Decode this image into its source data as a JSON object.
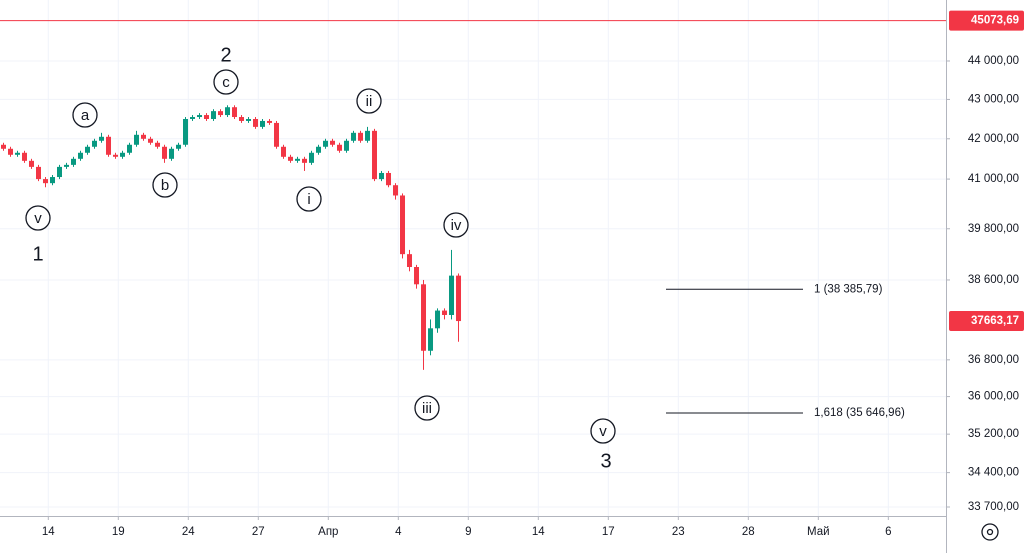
{
  "chart_data": {
    "type": "candlestick",
    "up_color": "#089981",
    "down_color": "#f23645",
    "open": [
      41850,
      41750,
      41600,
      41650,
      41450,
      41300,
      41000,
      40900,
      41050,
      41300,
      41350,
      41500,
      41650,
      41800,
      41950,
      42050,
      41600,
      41550,
      41650,
      41850,
      42100,
      42000,
      41900,
      41800,
      41500,
      41750,
      41850,
      42500,
      42550,
      42600,
      42500,
      42700,
      42600,
      42800,
      42550,
      42450,
      42500,
      42300,
      42450,
      42400,
      41800,
      41550,
      41450,
      41500,
      41400,
      41650,
      41800,
      41950,
      41850,
      41700,
      41950,
      42150,
      41950,
      42200,
      41000,
      41150,
      40850,
      40600,
      39200,
      38900,
      38500,
      37000,
      37500,
      37900,
      37800,
      38700
    ],
    "high": [
      41900,
      41800,
      41700,
      41700,
      41500,
      41350,
      41050,
      41100,
      41350,
      41400,
      41550,
      41700,
      41850,
      42000,
      42150,
      42100,
      41650,
      41700,
      41900,
      42200,
      42150,
      42050,
      41950,
      41850,
      41800,
      41900,
      42550,
      42600,
      42650,
      42650,
      42750,
      42750,
      42850,
      42850,
      42600,
      42550,
      42550,
      42500,
      42500,
      42450,
      41850,
      41600,
      41550,
      41550,
      41700,
      41850,
      42000,
      42000,
      41900,
      42000,
      42200,
      42200,
      42300,
      42250,
      41200,
      41200,
      40900,
      40650,
      39300,
      38950,
      38600,
      37700,
      37950,
      37950,
      39300,
      38750
    ],
    "low": [
      41700,
      41550,
      41550,
      41400,
      41250,
      40950,
      40800,
      40850,
      41000,
      41250,
      41300,
      41450,
      41600,
      41750,
      41900,
      41550,
      41500,
      41500,
      41600,
      41800,
      41950,
      41850,
      41750,
      41400,
      41450,
      41700,
      41800,
      42450,
      42500,
      42450,
      42450,
      42550,
      42550,
      42500,
      42400,
      42400,
      42250,
      42250,
      42350,
      41750,
      41500,
      41400,
      41400,
      41200,
      41350,
      41600,
      41750,
      41800,
      41650,
      41650,
      41900,
      41900,
      41900,
      40950,
      40950,
      40800,
      40500,
      39100,
      38800,
      38400,
      36580,
      36900,
      37400,
      37700,
      37700,
      37200
    ],
    "close": [
      41750,
      41600,
      41650,
      41450,
      41300,
      41000,
      40900,
      41050,
      41300,
      41350,
      41500,
      41650,
      41800,
      41950,
      42050,
      41600,
      41550,
      41650,
      41850,
      42100,
      42000,
      41900,
      41800,
      41500,
      41750,
      41850,
      42500,
      42550,
      42600,
      42500,
      42700,
      42600,
      42800,
      42550,
      42450,
      42500,
      42300,
      42450,
      42400,
      41800,
      41550,
      41450,
      41500,
      41400,
      41650,
      41800,
      41950,
      41850,
      41700,
      41950,
      42150,
      41950,
      42200,
      41000,
      41150,
      40850,
      40600,
      39200,
      38900,
      38500,
      37000,
      37500,
      37900,
      37800,
      38700,
      37663.17
    ],
    "log_scale": true,
    "grid": true,
    "ylim": [
      33519,
      45634
    ],
    "yticks": [
      {
        "value": 44000,
        "label": "44 000,00"
      },
      {
        "value": 43000,
        "label": "43 000,00"
      },
      {
        "value": 42000,
        "label": "42 000,00"
      },
      {
        "value": 41000,
        "label": "41 000,00"
      },
      {
        "value": 39800,
        "label": "39 800,00"
      },
      {
        "value": 38600,
        "label": "38 600,00"
      },
      {
        "value": 36800,
        "label": "36 800,00"
      },
      {
        "value": 36000,
        "label": "36 000,00"
      },
      {
        "value": 35200,
        "label": "35 200,00"
      },
      {
        "value": 34400,
        "label": "34 400,00"
      },
      {
        "value": 33700,
        "label": "33 700,00"
      }
    ],
    "xlim": [
      -0.5,
      134.64
    ],
    "xticks": [
      {
        "value": 6.4,
        "label": "14"
      },
      {
        "value": 16.4,
        "label": "19"
      },
      {
        "value": 26.4,
        "label": "24"
      },
      {
        "value": 36.4,
        "label": "27"
      },
      {
        "value": 46.4,
        "label": "Апр"
      },
      {
        "value": 56.4,
        "label": "4"
      },
      {
        "value": 66.4,
        "label": "9"
      },
      {
        "value": 76.4,
        "label": "14"
      },
      {
        "value": 86.4,
        "label": "17"
      },
      {
        "value": 96.4,
        "label": "23"
      },
      {
        "value": 106.4,
        "label": "28"
      },
      {
        "value": 116.4,
        "label": "Май"
      },
      {
        "value": 126.4,
        "label": "6"
      }
    ],
    "price_lines": [
      {
        "value": 45073.69,
        "label": "45073,69",
        "color": "#f23645",
        "line": true
      },
      {
        "value": 37663.17,
        "label": "37663,17",
        "color": "#f23645",
        "line": false
      }
    ],
    "fib_levels": [
      {
        "value": 38385.79,
        "label": "1 (38 385,79)"
      },
      {
        "value": 35646.96,
        "label": "1,618 (35 646,96)"
      }
    ],
    "annotations": [
      {
        "label": "v",
        "circled": true
      },
      {
        "label": "1",
        "circled": false
      },
      {
        "label": "a",
        "circled": true
      },
      {
        "label": "b",
        "circled": true
      },
      {
        "label": "2",
        "circled": false
      },
      {
        "label": "c",
        "circled": true
      },
      {
        "label": "i",
        "circled": true
      },
      {
        "label": "ii",
        "circled": true
      },
      {
        "label": "iii",
        "circled": true
      },
      {
        "label": "iv",
        "circled": true
      },
      {
        "label": "v",
        "circled": true
      },
      {
        "label": "3",
        "circled": false
      }
    ]
  }
}
